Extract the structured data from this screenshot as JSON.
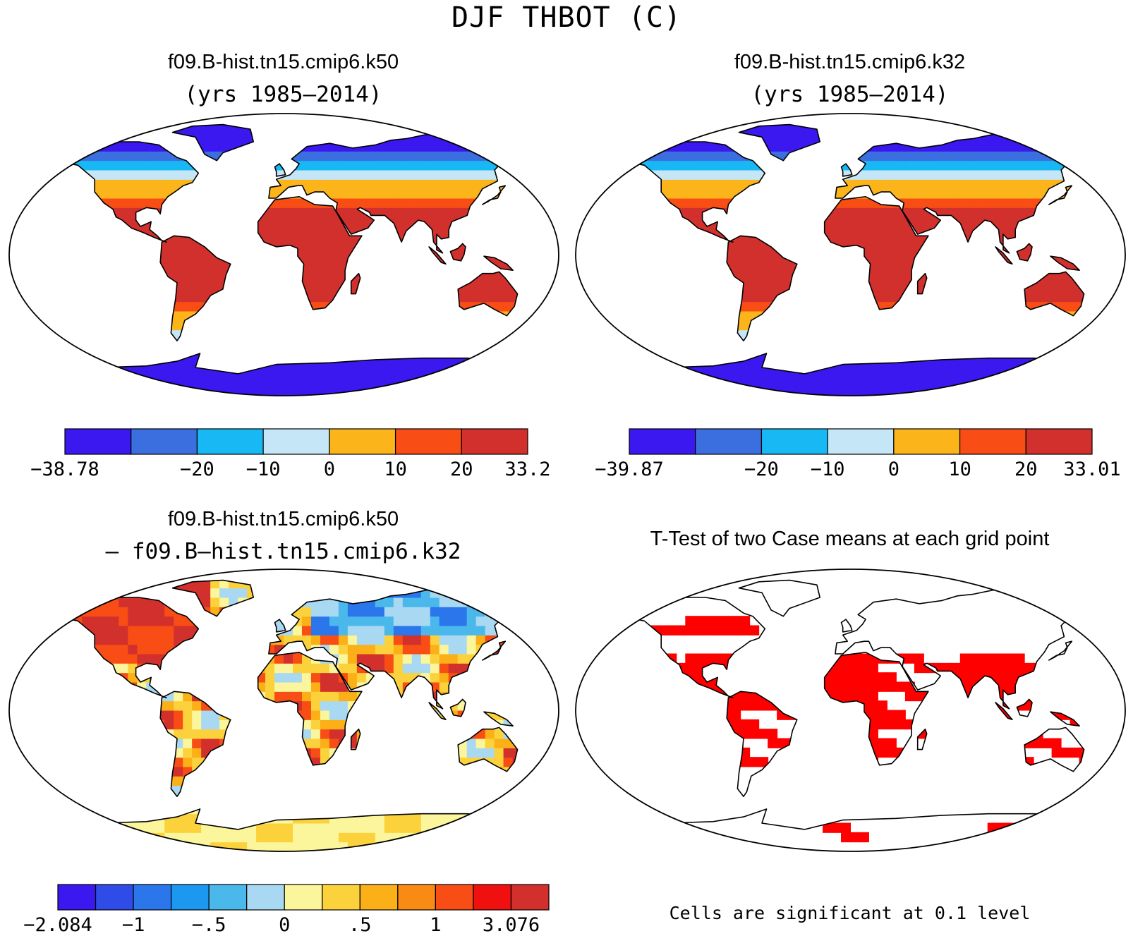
{
  "title": "DJF THBOT (C)",
  "panels": [
    {
      "title": "f09.B-hist.tn15.cmip6.k50",
      "subtitle": "(yrs 1985—2014)"
    },
    {
      "title": "f09.B-hist.tn15.cmip6.k32",
      "subtitle": "(yrs 1985—2014)"
    },
    {
      "title": "f09.B-hist.tn15.cmip6.k50",
      "subtitle": "— f09.B—hist.tn15.cmip6.k32"
    },
    {
      "title": "T-Test of two Case means at each grid point",
      "subtitle": ""
    }
  ],
  "colorbars": [
    {
      "labels": [
        "−38.78",
        "−20",
        "−10",
        "0",
        "10",
        "20",
        "33.2"
      ],
      "label_positions": [
        0,
        2,
        3,
        4,
        5,
        6,
        7
      ],
      "colors": [
        "#3b17f0",
        "#3b6fe0",
        "#17b8f4",
        "#c4e6f6",
        "#fbb41a",
        "#f84d14",
        "#d2302c"
      ]
    },
    {
      "labels": [
        "−39.87",
        "−20",
        "−10",
        "0",
        "10",
        "20",
        "33.01"
      ],
      "label_positions": [
        0,
        2,
        3,
        4,
        5,
        6,
        7
      ],
      "colors": [
        "#3b17f0",
        "#3b6fe0",
        "#17b8f4",
        "#c4e6f6",
        "#fbb41a",
        "#f84d14",
        "#d2302c"
      ]
    },
    {
      "labels": [
        "−2.084",
        "−1",
        "−.5",
        "0",
        ".5",
        "1",
        "3.076"
      ],
      "label_positions": [
        0,
        2,
        4,
        6,
        8,
        10,
        12
      ],
      "colors": [
        "#3b17f0",
        "#2f4ce8",
        "#2a76ea",
        "#1c98f0",
        "#4bb8ec",
        "#a8d8f2",
        "#fbf59c",
        "#fbd23c",
        "#fbb018",
        "#f98a14",
        "#f84d14",
        "#f01010",
        "#d2302c"
      ]
    }
  ],
  "significance_note": "Cells are significant at 0.1 level",
  "sig_color": "#ff0000"
}
